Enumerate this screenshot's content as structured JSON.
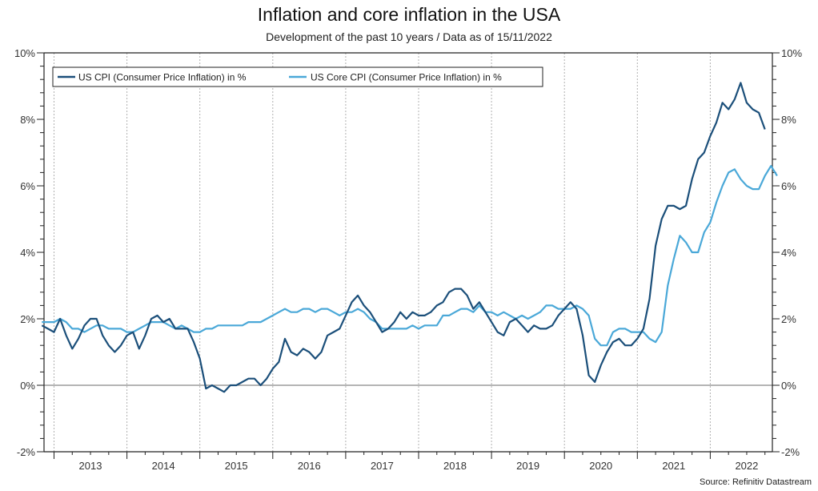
{
  "chart_data": {
    "type": "line",
    "title": "Inflation and core inflation in the USA",
    "subtitle": "Development of the past 10 years / Data as of 15/11/2022",
    "source": "Source: Refinitiv Datastream",
    "xlabel": "",
    "ylabel": "",
    "x_start": "2012-11",
    "x_end": "2022-10",
    "x_frequency": "monthly",
    "xlim": [
      "2012-11",
      "2022-11"
    ],
    "x_tick_labels": [
      "2013",
      "2014",
      "2015",
      "2016",
      "2017",
      "2018",
      "2019",
      "2020",
      "2021",
      "2022"
    ],
    "ylim": [
      -2,
      10
    ],
    "y_ticks": [
      -2,
      0,
      2,
      4,
      6,
      8,
      10
    ],
    "y_tick_labels": [
      "-2%",
      "0%",
      "2%",
      "4%",
      "6%",
      "8%",
      "10%"
    ],
    "y_axes": "left-and-right",
    "grid": "vertical-dotted-at-year-boundaries",
    "zero_line": true,
    "legend_position": "top-left",
    "series": [
      {
        "name": "US CPI (Consumer Price Inflation) in %",
        "color": "#1b4f7a",
        "values": [
          1.8,
          1.7,
          1.6,
          2.0,
          1.5,
          1.1,
          1.4,
          1.8,
          2.0,
          2.0,
          1.5,
          1.2,
          1.0,
          1.2,
          1.5,
          1.6,
          1.1,
          1.5,
          2.0,
          2.1,
          1.9,
          2.0,
          1.7,
          1.7,
          1.7,
          1.3,
          0.8,
          -0.1,
          0.0,
          -0.1,
          -0.2,
          0.0,
          0.0,
          0.1,
          0.2,
          0.2,
          0.0,
          0.2,
          0.5,
          0.7,
          1.4,
          1.0,
          0.9,
          1.1,
          1.0,
          0.8,
          1.0,
          1.5,
          1.6,
          1.7,
          2.1,
          2.5,
          2.7,
          2.4,
          2.2,
          1.9,
          1.6,
          1.7,
          1.9,
          2.2,
          2.0,
          2.2,
          2.1,
          2.1,
          2.2,
          2.4,
          2.5,
          2.8,
          2.9,
          2.9,
          2.7,
          2.3,
          2.5,
          2.2,
          1.9,
          1.6,
          1.5,
          1.9,
          2.0,
          1.8,
          1.6,
          1.8,
          1.7,
          1.7,
          1.8,
          2.1,
          2.3,
          2.5,
          2.3,
          1.5,
          0.3,
          0.1,
          0.6,
          1.0,
          1.3,
          1.4,
          1.2,
          1.2,
          1.4,
          1.7,
          2.6,
          4.2,
          5.0,
          5.4,
          5.4,
          5.3,
          5.4,
          6.2,
          6.8,
          7.0,
          7.5,
          7.9,
          8.5,
          8.3,
          8.6,
          9.1,
          8.5,
          8.3,
          8.2,
          7.7
        ]
      },
      {
        "name": "US Core CPI (Consumer Price Inflation) in %",
        "color": "#4aa8d8",
        "values": [
          1.9,
          1.9,
          1.9,
          2.0,
          1.9,
          1.7,
          1.7,
          1.6,
          1.7,
          1.8,
          1.8,
          1.7,
          1.7,
          1.7,
          1.6,
          1.6,
          1.7,
          1.8,
          1.9,
          1.9,
          1.9,
          1.8,
          1.7,
          1.8,
          1.7,
          1.6,
          1.6,
          1.7,
          1.7,
          1.8,
          1.8,
          1.8,
          1.8,
          1.8,
          1.9,
          1.9,
          1.9,
          2.0,
          2.1,
          2.2,
          2.3,
          2.2,
          2.2,
          2.3,
          2.3,
          2.2,
          2.3,
          2.3,
          2.2,
          2.1,
          2.2,
          2.2,
          2.3,
          2.2,
          2.0,
          1.9,
          1.7,
          1.7,
          1.7,
          1.7,
          1.7,
          1.8,
          1.7,
          1.8,
          1.8,
          1.8,
          2.1,
          2.1,
          2.2,
          2.3,
          2.3,
          2.2,
          2.4,
          2.2,
          2.2,
          2.1,
          2.2,
          2.1,
          2.0,
          2.1,
          2.0,
          2.1,
          2.2,
          2.4,
          2.4,
          2.3,
          2.3,
          2.3,
          2.4,
          2.3,
          2.1,
          1.4,
          1.2,
          1.2,
          1.6,
          1.7,
          1.7,
          1.6,
          1.6,
          1.6,
          1.4,
          1.3,
          1.6,
          3.0,
          3.8,
          4.5,
          4.3,
          4.0,
          4.0,
          4.6,
          4.9,
          5.5,
          6.0,
          6.4,
          6.5,
          6.2,
          6.0,
          5.9,
          5.9,
          6.3,
          6.6,
          6.3
        ]
      }
    ]
  }
}
